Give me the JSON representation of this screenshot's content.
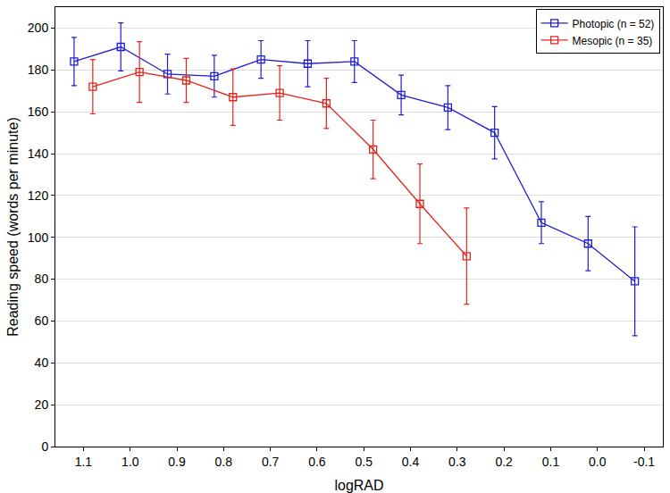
{
  "chart_data": {
    "type": "line",
    "x_label": "logRAD",
    "y_label": "Reading speed (words per minute)",
    "xlim": [
      1.16,
      -0.14
    ],
    "xticks": [
      1.1,
      {
        "value": 1.0,
        "label": "1.0"
      },
      0.9,
      0.8,
      0.7,
      0.6,
      0.5,
      0.4,
      0.3,
      0.2,
      0.1,
      {
        "value": 0.0,
        "label": "0.0"
      },
      -0.1
    ],
    "ylim": [
      0,
      210
    ],
    "yticks": [
      0,
      20,
      40,
      60,
      80,
      100,
      120,
      140,
      160,
      180,
      200
    ],
    "grid": "y",
    "legend": "upper right",
    "marker": "square-open",
    "series": [
      {
        "name": "Photopic (n = 52)",
        "color": "#1f1fd0",
        "x": [
          1.12,
          1.02,
          0.92,
          0.82,
          0.72,
          0.62,
          0.52,
          0.42,
          0.32,
          0.22,
          0.12,
          0.02,
          -0.08
        ],
        "values": [
          184,
          191,
          178,
          177,
          185,
          183,
          184,
          168,
          162,
          150,
          107,
          97,
          79
        ],
        "errors": [
          11.5,
          11.5,
          9.5,
          10,
          9,
          11,
          10,
          9.5,
          10.5,
          12.5,
          10,
          13,
          26
        ]
      },
      {
        "name": "Mesopic (n = 35)",
        "color": "#e0261c",
        "x": [
          1.08,
          0.98,
          0.88,
          0.78,
          0.68,
          0.58,
          0.48,
          0.38,
          0.28
        ],
        "values": [
          172,
          179,
          175,
          167,
          169,
          164,
          142,
          116,
          91
        ],
        "errors": [
          13,
          14.5,
          10.5,
          13.5,
          13,
          12,
          14,
          19,
          23
        ]
      }
    ]
  }
}
